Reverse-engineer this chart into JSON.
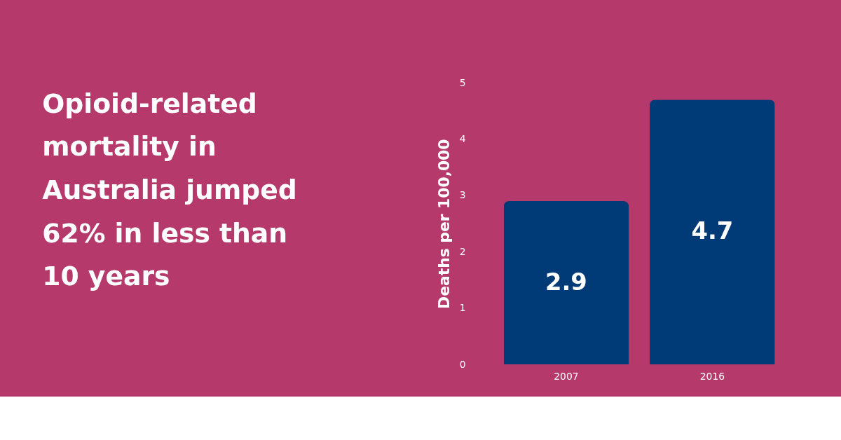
{
  "chart_data": {
    "type": "bar",
    "title": [
      "Opioid-related",
      "mortality in",
      "Australia jumped",
      "62%  in less than",
      "10 years"
    ],
    "ylabel": "Deaths per 100,000",
    "categories": [
      "2007",
      "2016"
    ],
    "values": [
      2.9,
      4.7
    ],
    "color": "#003b78",
    "ylim": [
      0,
      5
    ],
    "yticks": [
      0,
      1,
      2,
      3,
      4,
      5
    ],
    "grid": false,
    "data_labels": true
  }
}
